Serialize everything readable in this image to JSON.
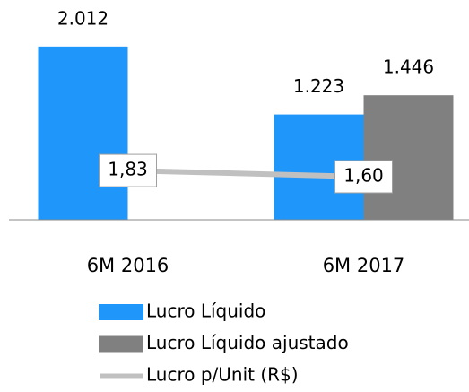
{
  "chart_data": {
    "type": "bar_line",
    "categories": [
      "6M 2016",
      "6M 2017"
    ],
    "series": [
      {
        "name": "Lucro Líquido",
        "color": "#1e96fa",
        "values": [
          2012,
          1223
        ],
        "value_labels": [
          "2.012",
          "1.223"
        ]
      },
      {
        "name": "Lucro Líquido ajustado",
        "color": "#808080",
        "values": [
          null,
          1446
        ],
        "value_labels": [
          null,
          "1.446"
        ]
      },
      {
        "name": "Lucro p/Unit (R$)",
        "color": "#c0c0c0",
        "type": "line",
        "axis": "y2",
        "values": [
          1.83,
          1.6
        ],
        "value_labels": [
          "1,83",
          "1,60"
        ]
      }
    ],
    "ylim": [
      0,
      2500
    ],
    "y2lim": [
      0,
      8
    ],
    "legend": "bottom"
  }
}
